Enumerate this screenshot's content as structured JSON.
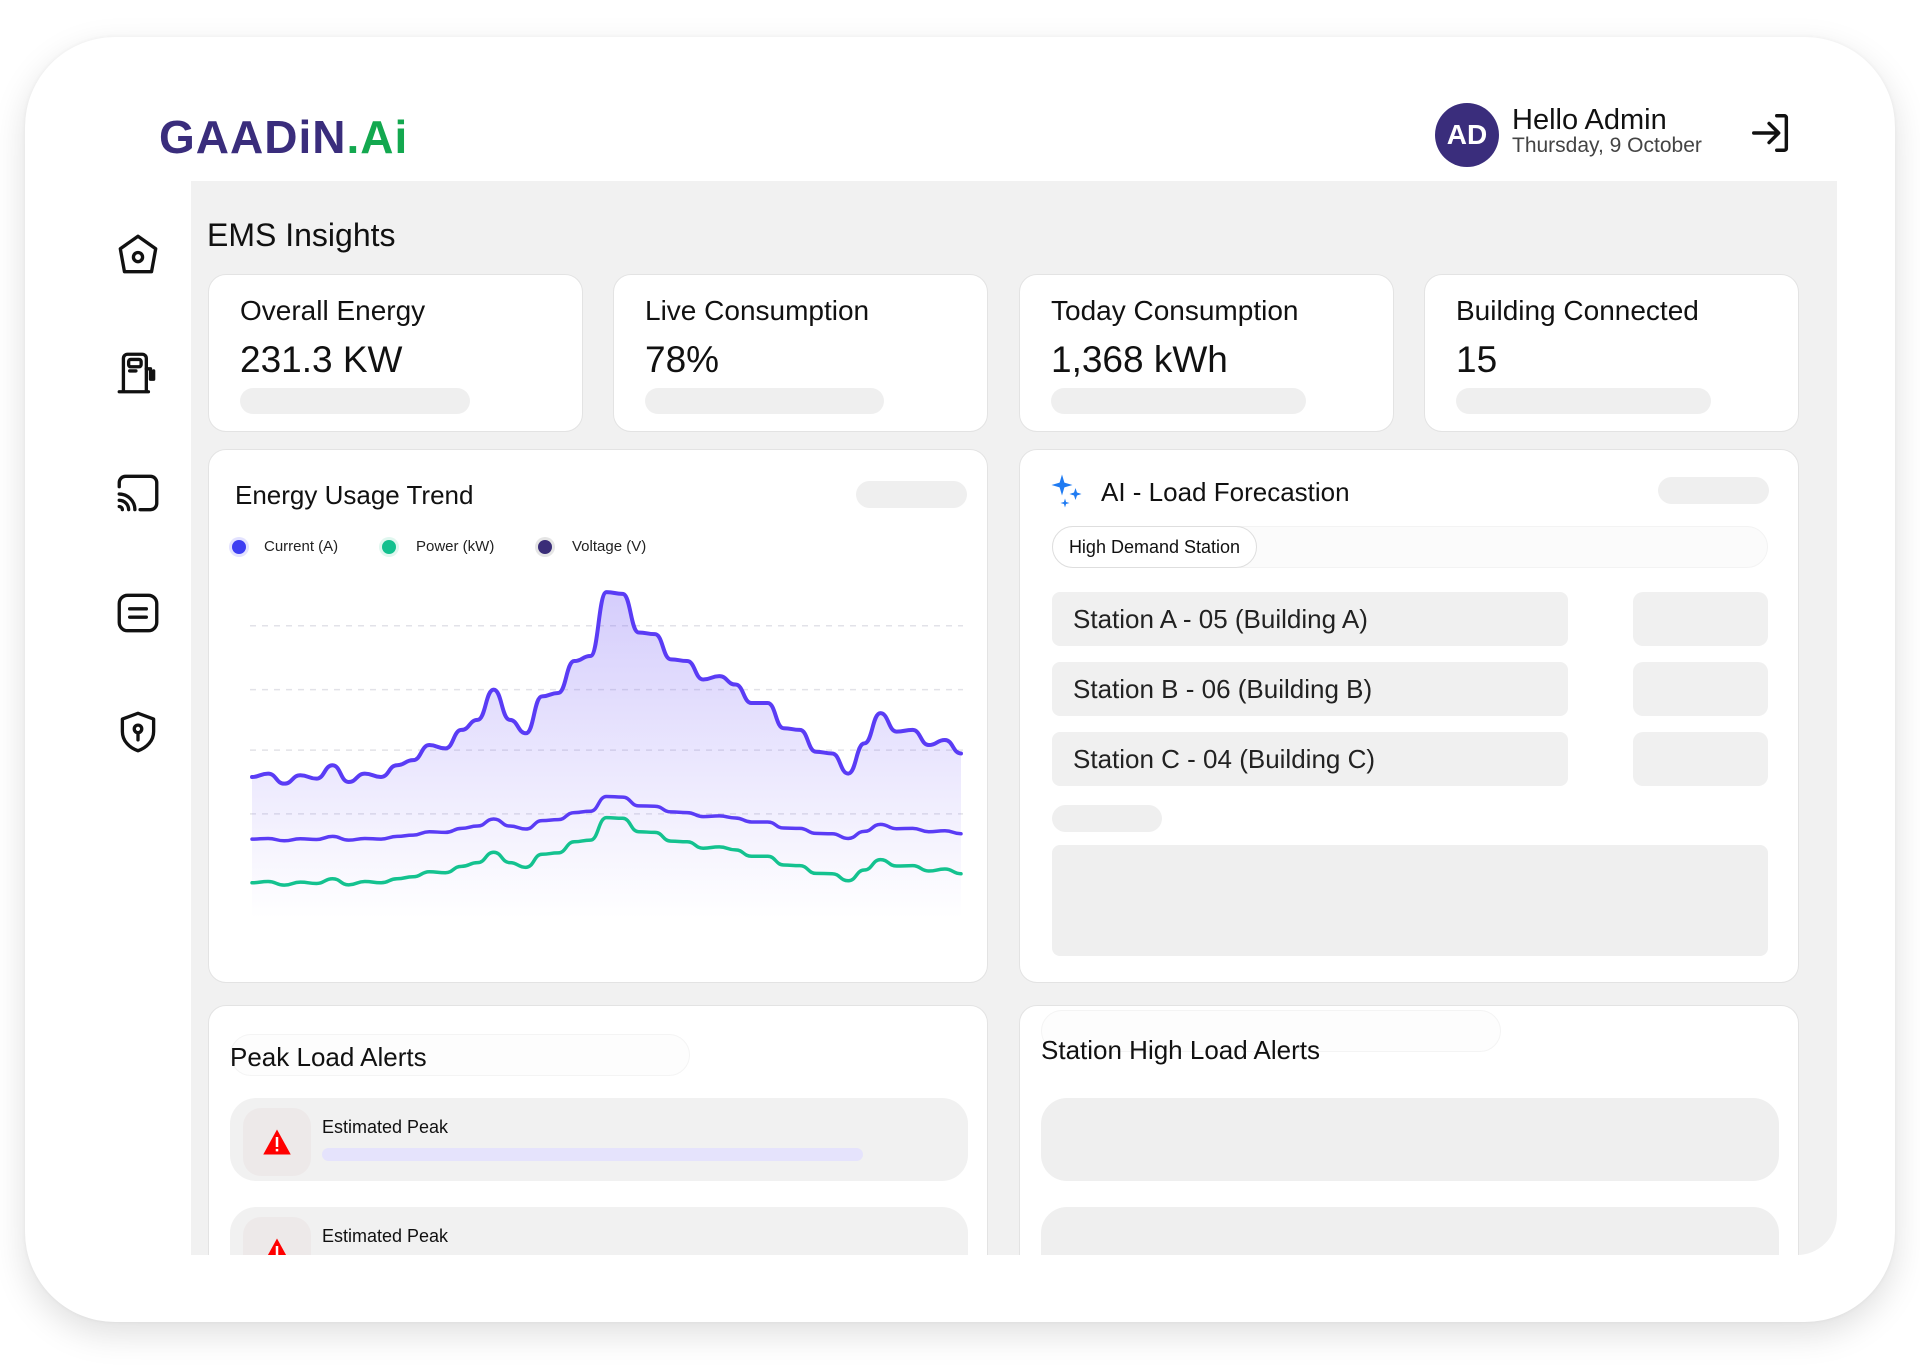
{
  "brand": {
    "logo_main": "GAADiN",
    "logo_dot": ".",
    "logo_ai": "Ai",
    "primary": "#3a2d7c",
    "accent": "#13a84f"
  },
  "header": {
    "avatar_initials": "AD",
    "greeting": "Hello Admin",
    "date": "Thursday, 9 October",
    "logout_icon": "logout-icon"
  },
  "sidebar": {
    "items": [
      {
        "icon": "home-icon"
      },
      {
        "icon": "fuel-station-icon"
      },
      {
        "icon": "cast-icon"
      },
      {
        "icon": "menu-square-icon"
      },
      {
        "icon": "shield-location-icon"
      }
    ]
  },
  "page": {
    "title": "EMS Insights"
  },
  "stats": [
    {
      "label": "Overall Energy",
      "value": "231.3 KW"
    },
    {
      "label": "Live Consumption",
      "value": "78%"
    },
    {
      "label": "Today Consumption",
      "value": "1,368 kWh"
    },
    {
      "label": "Building Connected",
      "value": "15"
    }
  ],
  "trend": {
    "title": "Energy Usage Trend",
    "legend": [
      {
        "label": "Current (A)",
        "color": "#3d3df2"
      },
      {
        "label": "Power (kW)",
        "color": "#12c08e"
      },
      {
        "label": "Voltage (V)",
        "color": "#3a2d78"
      }
    ]
  },
  "chart_data": {
    "type": "line",
    "title": "Energy Usage Trend",
    "xlabel": "",
    "ylabel": "",
    "ylim": [
      0,
      100
    ],
    "grid": true,
    "legend_placement": "top-left",
    "series": [
      {
        "name": "Current (A)",
        "color": "#5a3cf5",
        "fill": true,
        "values": [
          39,
          40,
          37,
          39.5,
          38.5,
          42.5,
          37.5,
          40,
          39,
          42.5,
          44,
          48.5,
          47.5,
          53,
          56,
          65,
          56,
          52,
          63,
          64,
          73.5,
          75,
          94,
          93.5,
          82,
          81.5,
          74,
          73.5,
          68,
          69,
          66.5,
          61,
          61,
          53.5,
          53,
          46.5,
          46,
          40,
          49,
          58,
          52.5,
          53,
          48.5,
          50,
          46
        ]
      },
      {
        "name": "Voltage (V)",
        "color": "#5a3cf5",
        "values": [
          20.5,
          20.7,
          20,
          20.6,
          20.4,
          21.3,
          20.2,
          20.7,
          20.5,
          21.3,
          21.7,
          22.7,
          22.5,
          23.7,
          24.4,
          26.5,
          24.4,
          23.5,
          26,
          26.3,
          28.4,
          28.8,
          33.2,
          33,
          30.4,
          30.3,
          28.6,
          28.4,
          27.2,
          27.4,
          26.8,
          25.6,
          25.6,
          23.8,
          23.7,
          22.2,
          22.1,
          20.7,
          22.8,
          24.9,
          23.6,
          23.7,
          22.7,
          23,
          22.1
        ]
      },
      {
        "name": "Power (kW)",
        "color": "#14c28f",
        "values": [
          7.5,
          7.9,
          6.8,
          7.7,
          7.3,
          8.7,
          6.9,
          7.9,
          7.5,
          8.7,
          9.3,
          10.8,
          10.5,
          12.4,
          13.5,
          16.6,
          13.5,
          12.1,
          16,
          16.4,
          19.7,
          20.2,
          26.9,
          26.7,
          22.7,
          22.5,
          19.9,
          19.7,
          17.8,
          18.2,
          17.3,
          15.4,
          15.4,
          12.8,
          12.6,
          10.3,
          10.2,
          8.1,
          11.3,
          14.4,
          12.5,
          12.6,
          11,
          11.6,
          10.2
        ]
      }
    ]
  },
  "forecast": {
    "title": "AI - Load Forecastion",
    "icon": "sparkle-icon",
    "chip": "High Demand Station",
    "stations": [
      "Station A - 05 (Building A)",
      "Station B - 06 (Building B)",
      "Station C - 04 (Building C)"
    ]
  },
  "peak_alerts": {
    "title": "Peak Load Alerts",
    "items": [
      {
        "label": "Estimated Peak",
        "icon": "warning-icon"
      },
      {
        "label": "Estimated Peak",
        "icon": "warning-icon"
      }
    ]
  },
  "station_alerts": {
    "title": "Station High Load Alerts"
  }
}
